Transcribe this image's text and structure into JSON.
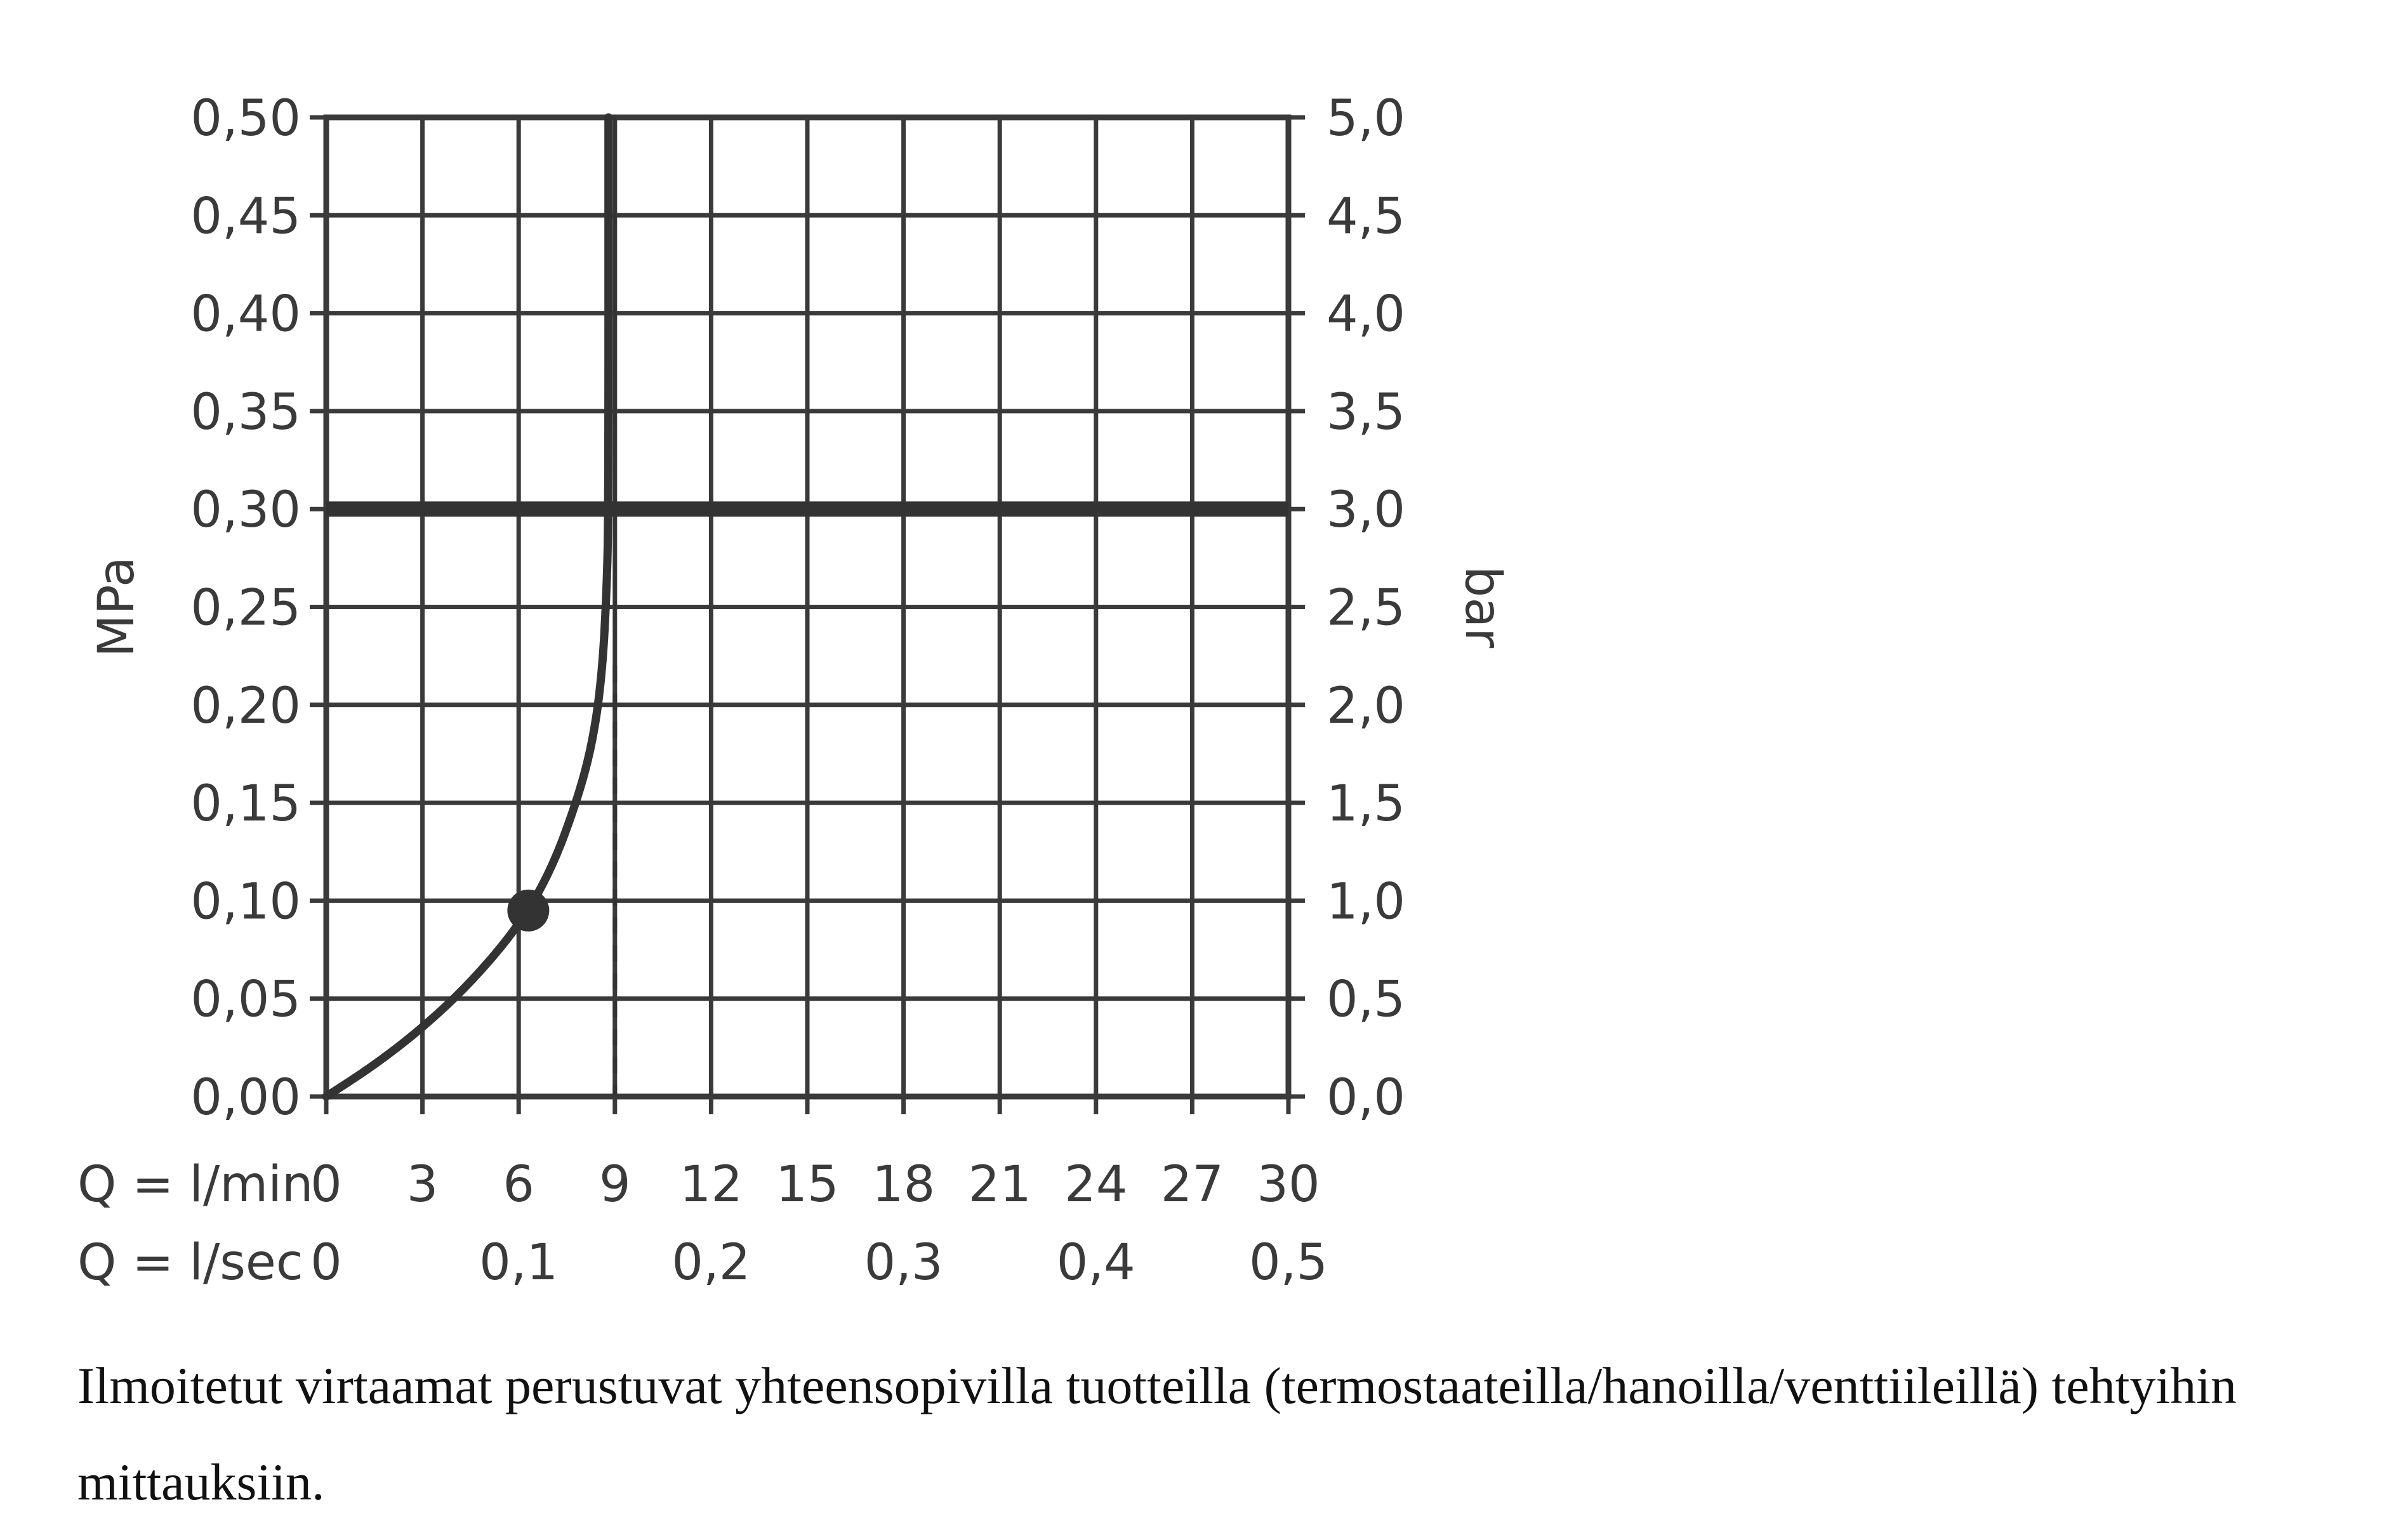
{
  "chart_data": {
    "type": "line",
    "x_unit_label": "Q = l/min",
    "x_ticks": [
      0,
      3,
      6,
      9,
      12,
      15,
      18,
      21,
      24,
      27,
      30
    ],
    "x_tick_labels": [
      "0",
      "3",
      "6",
      "9",
      "12",
      "15",
      "18",
      "21",
      "24",
      "27",
      "30"
    ],
    "x2_unit_label": "Q = l/sec",
    "x2_ticks": [
      0,
      6,
      12,
      18,
      24,
      30
    ],
    "x2_tick_labels": [
      "0",
      "0,1",
      "0,2",
      "0,3",
      "0,4",
      "0,5"
    ],
    "xlim": [
      0,
      30
    ],
    "ylabel": "MPa",
    "y_ticks": [
      0,
      0.05,
      0.1,
      0.15,
      0.2,
      0.25,
      0.3,
      0.35,
      0.4,
      0.45,
      0.5
    ],
    "y_tick_labels": [
      "0,00",
      "0,05",
      "0,10",
      "0,15",
      "0,20",
      "0,25",
      "0,30",
      "0,35",
      "0,40",
      "0,45",
      "0,50"
    ],
    "ylim": [
      0,
      0.5
    ],
    "y2label": "bar",
    "y2_tick_labels": [
      "0,0",
      "0,5",
      "1,0",
      "1,5",
      "2,0",
      "2,5",
      "3,0",
      "3,5",
      "4,0",
      "4,5",
      "5,0"
    ],
    "grid": true,
    "series": [
      {
        "points": [
          [
            0,
            0
          ],
          [
            1.5,
            0.016
          ],
          [
            3,
            0.035
          ],
          [
            4.5,
            0.058
          ],
          [
            6,
            0.087
          ],
          [
            7,
            0.115
          ],
          [
            7.8,
            0.15
          ],
          [
            8.3,
            0.18
          ],
          [
            8.6,
            0.215
          ],
          [
            8.75,
            0.26
          ],
          [
            8.8,
            0.3
          ],
          [
            8.8,
            0.5
          ]
        ]
      }
    ],
    "reference_line_y": 0.3,
    "reference_line_x": 9,
    "marker_point": [
      6.3,
      0.095
    ],
    "colors": {
      "curve": "#333333",
      "grid": "#3a3a3a",
      "reference": "#333333"
    }
  },
  "caption": "Ilmoitetut virtaamat perustuvat yhteensopivilla tuotteilla (termostaateilla/hanoilla/venttiileillä) tehtyihin mittauksiin."
}
